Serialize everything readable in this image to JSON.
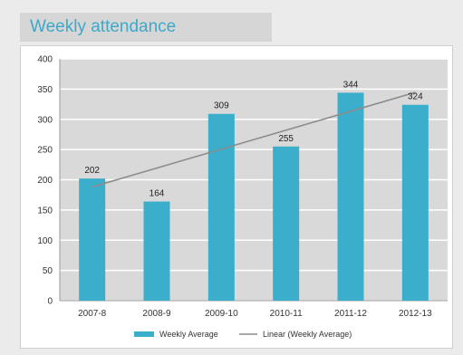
{
  "header": {
    "title": "Weekly attendance"
  },
  "chart_data": {
    "type": "bar",
    "title": "",
    "xlabel": "",
    "ylabel": "",
    "categories": [
      "2007-8",
      "2008-9",
      "2009-10",
      "2010-11",
      "2011-12",
      "2012-13"
    ],
    "series": [
      {
        "name": "Weekly Average",
        "values": [
          202,
          164,
          309,
          255,
          344,
          324
        ],
        "color": "#3aaecb"
      }
    ],
    "trendline": {
      "name": "Linear (Weekly Average)",
      "type": "linear",
      "color": "#8c8c8c"
    },
    "ylim": [
      0,
      400
    ],
    "yticks": [
      0,
      50,
      100,
      150,
      200,
      250,
      300,
      350,
      400
    ],
    "grid": true,
    "data_labels": true,
    "legend_position": "bottom",
    "plot_background": "#d9d9d9"
  }
}
